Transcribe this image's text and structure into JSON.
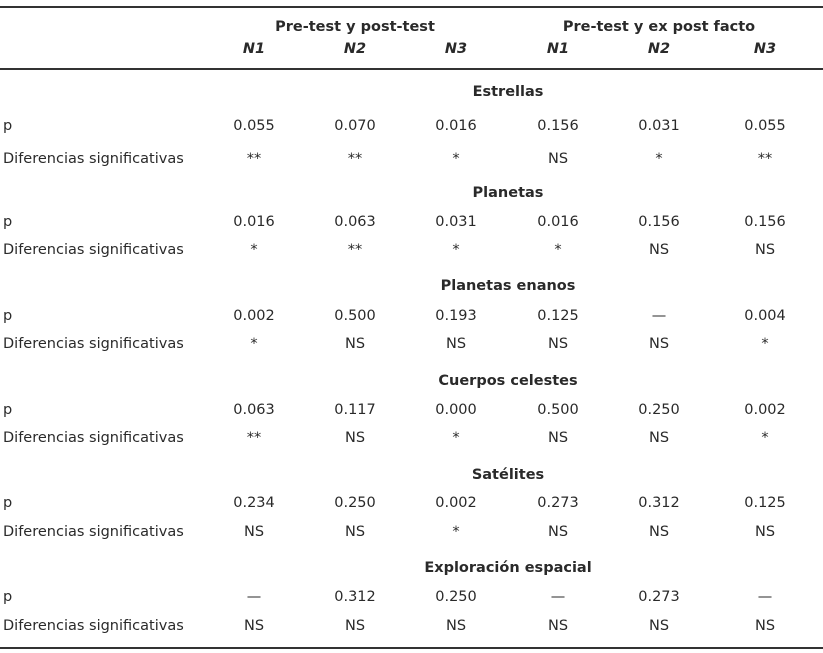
{
  "header": {
    "groups": [
      "Pre-test y post-test",
      "Pre-test y ex post facto"
    ],
    "columns": [
      "N1",
      "N2",
      "N3",
      "N1",
      "N2",
      "N3"
    ]
  },
  "sections": [
    {
      "title": "Estrellas",
      "p_label": "p",
      "diff_label": "Diferencias significativas",
      "p": [
        "0.055",
        "0.070",
        "0.016",
        "0.156",
        "0.031",
        "0.055"
      ],
      "diff": [
        "**",
        "**",
        "*",
        "NS",
        "*",
        "**"
      ]
    },
    {
      "title": "Planetas",
      "p_label": "p",
      "diff_label": "Diferencias significativas",
      "p": [
        "0.016",
        "0.063",
        "0.031",
        "0.016",
        "0.156",
        "0.156"
      ],
      "diff": [
        "*",
        "**",
        "*",
        "*",
        "NS",
        "NS"
      ]
    },
    {
      "title": "Planetas enanos",
      "p_label": "p",
      "diff_label": "Diferencias significativas",
      "p": [
        "0.002",
        "0.500",
        "0.193",
        "0.125",
        "—",
        "0.004"
      ],
      "diff": [
        "*",
        "NS",
        "NS",
        "NS",
        "NS",
        "*"
      ]
    },
    {
      "title": "Cuerpos celestes",
      "p_label": "p",
      "diff_label": "Diferencias significativas",
      "p": [
        "0.063",
        "0.117",
        "0.000",
        "0.500",
        "0.250",
        "0.002"
      ],
      "diff": [
        "**",
        "NS",
        "*",
        "NS",
        "NS",
        "*"
      ]
    },
    {
      "title": "Satélites",
      "p_label": "p",
      "diff_label": "Diferencias significativas",
      "p": [
        "0.234",
        "0.250",
        "0.002",
        "0.273",
        "0.312",
        "0.125"
      ],
      "diff": [
        "NS",
        "NS",
        "*",
        "NS",
        "NS",
        "NS"
      ]
    },
    {
      "title": "Exploración espacial",
      "p_label": "p",
      "diff_label": "Diferencias significativas",
      "p": [
        "—",
        "0.312",
        "0.250",
        "—",
        "0.273",
        "—"
      ],
      "diff": [
        "NS",
        "NS",
        "NS",
        "NS",
        "NS",
        "NS"
      ]
    }
  ]
}
